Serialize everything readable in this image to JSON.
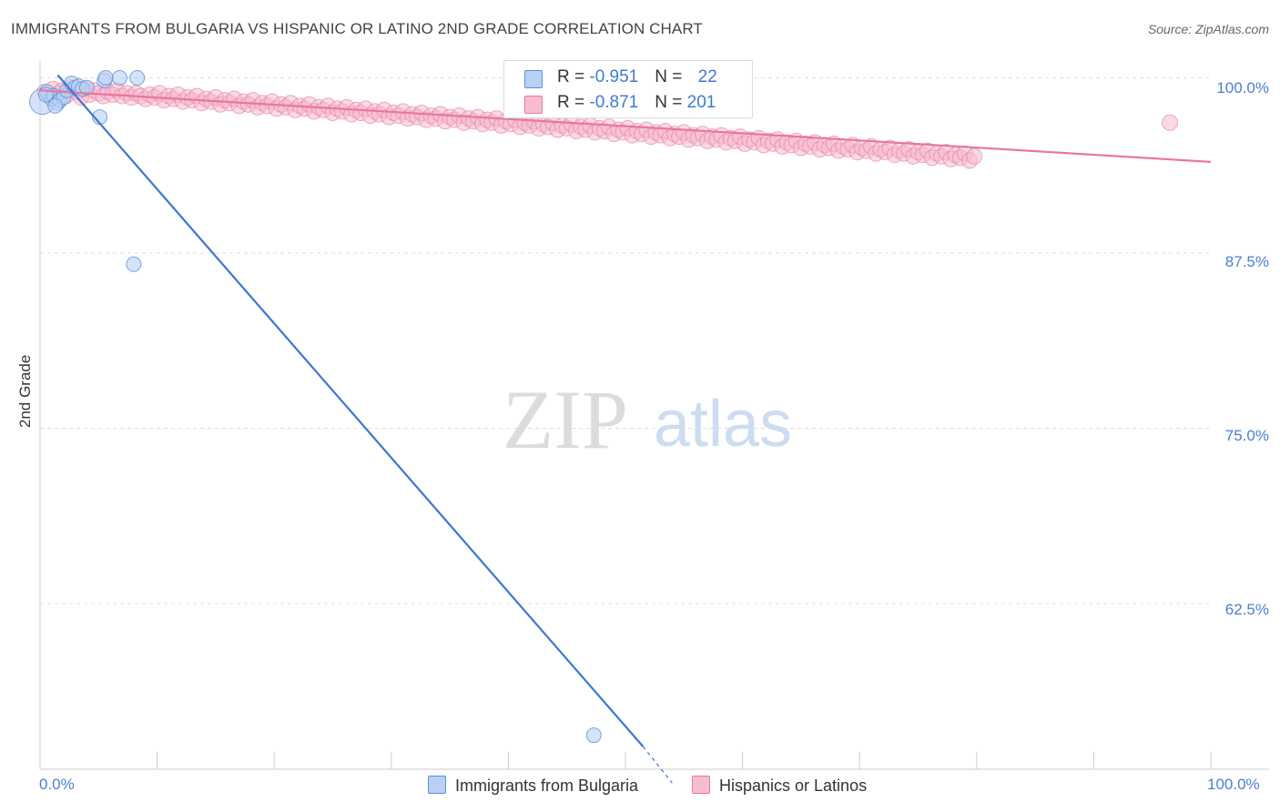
{
  "title": "IMMIGRANTS FROM BULGARIA VS HISPANIC OR LATINO 2ND GRADE CORRELATION CHART",
  "source": "Source: ZipAtlas.com",
  "watermark": {
    "zip": "ZIP",
    "atlas": "atlas"
  },
  "legend": {
    "rows": [
      {
        "r_label": "R = ",
        "r_value": "-0.951",
        "n_label": "N = ",
        "n_value": "22"
      },
      {
        "r_label": "R = ",
        "r_value": "-0.871",
        "n_label": "N = ",
        "n_value": "201"
      }
    ]
  },
  "bottom_legend": [
    "Immigrants from Bulgaria",
    "Hispanics or Latinos"
  ],
  "colors": {
    "blue": "#5b8fdc",
    "blue_fill": "#b9d0f3",
    "pink": "#e8779c",
    "pink_fill": "#f6bdd0",
    "tick": "#4a7fd0"
  },
  "chart_data": {
    "type": "scatter",
    "title": "IMMIGRANTS FROM BULGARIA VS HISPANIC OR LATINO 2ND GRADE CORRELATION CHART",
    "xlabel": "",
    "ylabel": "2nd Grade",
    "x_tick_labels": [
      "0.0%",
      "100.0%"
    ],
    "y_tick_labels": [
      "100.0%",
      "87.5%",
      "75.0%",
      "62.5%"
    ],
    "xlim": [
      0,
      100
    ],
    "ylim": [
      52.3,
      101.2
    ],
    "grid": true,
    "series": [
      {
        "name": "Immigrants from Bulgaria",
        "color": "#5b8fdc",
        "points": [
          [
            0.2,
            98.3
          ],
          [
            0.6,
            99.0
          ],
          [
            1.0,
            98.5
          ],
          [
            1.2,
            98.7
          ],
          [
            1.5,
            98.2
          ],
          [
            1.7,
            98.4
          ],
          [
            2.0,
            98.6
          ],
          [
            2.3,
            99.1
          ],
          [
            2.7,
            99.6
          ],
          [
            3.0,
            99.3
          ],
          [
            3.3,
            99.4
          ],
          [
            3.6,
            99.2
          ],
          [
            4.0,
            99.3
          ],
          [
            5.1,
            97.2
          ],
          [
            5.5,
            99.8
          ],
          [
            5.6,
            100.0
          ],
          [
            6.8,
            100.0
          ],
          [
            8.3,
            100.0
          ],
          [
            8.0,
            86.7
          ],
          [
            47.3,
            53.1
          ],
          [
            0.5,
            98.8
          ],
          [
            1.3,
            98.0
          ]
        ],
        "trend": [
          [
            1.5,
            100.2
          ],
          [
            51.5,
            52.3
          ]
        ]
      },
      {
        "name": "Hispanics or Latinos",
        "color": "#e8779c",
        "points": [
          [
            0.4,
            99.0
          ],
          [
            0.8,
            98.8
          ],
          [
            1.1,
            99.2
          ],
          [
            1.6,
            98.9
          ],
          [
            1.9,
            99.1
          ],
          [
            2.2,
            98.7
          ],
          [
            2.6,
            99.3
          ],
          [
            3.1,
            99.0
          ],
          [
            3.5,
            98.6
          ],
          [
            3.8,
            99.2
          ],
          [
            4.2,
            98.8
          ],
          [
            4.6,
            99.1
          ],
          [
            5.0,
            98.9
          ],
          [
            5.4,
            98.7
          ],
          [
            5.8,
            99.0
          ],
          [
            6.2,
            98.8
          ],
          [
            6.6,
            99.1
          ],
          [
            7.0,
            98.7
          ],
          [
            7.4,
            98.9
          ],
          [
            7.8,
            98.6
          ],
          [
            8.2,
            98.9
          ],
          [
            8.6,
            98.7
          ],
          [
            9.0,
            98.5
          ],
          [
            9.4,
            98.8
          ],
          [
            9.8,
            98.6
          ],
          [
            10.2,
            98.9
          ],
          [
            10.6,
            98.4
          ],
          [
            11.0,
            98.7
          ],
          [
            11.4,
            98.5
          ],
          [
            11.8,
            98.8
          ],
          [
            12.2,
            98.3
          ],
          [
            12.6,
            98.6
          ],
          [
            13.0,
            98.4
          ],
          [
            13.4,
            98.7
          ],
          [
            13.8,
            98.2
          ],
          [
            14.2,
            98.5
          ],
          [
            14.6,
            98.3
          ],
          [
            15.0,
            98.6
          ],
          [
            15.4,
            98.1
          ],
          [
            15.8,
            98.4
          ],
          [
            16.2,
            98.2
          ],
          [
            16.6,
            98.5
          ],
          [
            17.0,
            98.0
          ],
          [
            17.4,
            98.3
          ],
          [
            17.8,
            98.1
          ],
          [
            18.2,
            98.4
          ],
          [
            18.6,
            97.9
          ],
          [
            19.0,
            98.2
          ],
          [
            19.4,
            98.0
          ],
          [
            19.8,
            98.3
          ],
          [
            20.2,
            97.8
          ],
          [
            20.6,
            98.1
          ],
          [
            21.0,
            97.9
          ],
          [
            21.4,
            98.2
          ],
          [
            21.8,
            97.7
          ],
          [
            22.2,
            98.0
          ],
          [
            22.6,
            97.8
          ],
          [
            23.0,
            98.1
          ],
          [
            23.4,
            97.6
          ],
          [
            23.8,
            97.9
          ],
          [
            24.2,
            97.7
          ],
          [
            24.6,
            98.0
          ],
          [
            25.0,
            97.5
          ],
          [
            25.4,
            97.8
          ],
          [
            25.8,
            97.6
          ],
          [
            26.2,
            97.9
          ],
          [
            26.6,
            97.4
          ],
          [
            27.0,
            97.7
          ],
          [
            27.4,
            97.5
          ],
          [
            27.8,
            97.8
          ],
          [
            28.2,
            97.3
          ],
          [
            28.6,
            97.6
          ],
          [
            29.0,
            97.4
          ],
          [
            29.4,
            97.7
          ],
          [
            29.8,
            97.2
          ],
          [
            30.2,
            97.5
          ],
          [
            30.6,
            97.3
          ],
          [
            31.0,
            97.6
          ],
          [
            31.4,
            97.1
          ],
          [
            31.8,
            97.4
          ],
          [
            32.2,
            97.2
          ],
          [
            32.6,
            97.5
          ],
          [
            33.0,
            97.0
          ],
          [
            33.4,
            97.3
          ],
          [
            33.8,
            97.1
          ],
          [
            34.2,
            97.4
          ],
          [
            34.6,
            96.9
          ],
          [
            35.0,
            97.2
          ],
          [
            35.4,
            97.0
          ],
          [
            35.8,
            97.3
          ],
          [
            36.2,
            96.8
          ],
          [
            36.6,
            97.1
          ],
          [
            37.0,
            96.9
          ],
          [
            37.4,
            97.2
          ],
          [
            37.8,
            96.7
          ],
          [
            38.2,
            97.0
          ],
          [
            38.6,
            96.8
          ],
          [
            39.0,
            97.1
          ],
          [
            39.4,
            96.6
          ],
          [
            39.8,
            96.9
          ],
          [
            40.2,
            96.7
          ],
          [
            40.6,
            97.0
          ],
          [
            41.0,
            96.5
          ],
          [
            41.4,
            96.8
          ],
          [
            41.8,
            96.6
          ],
          [
            42.2,
            96.9
          ],
          [
            42.6,
            96.4
          ],
          [
            43.0,
            96.7
          ],
          [
            43.4,
            96.5
          ],
          [
            43.8,
            96.8
          ],
          [
            44.2,
            96.3
          ],
          [
            44.6,
            96.6
          ],
          [
            45.0,
            96.4
          ],
          [
            45.4,
            96.7
          ],
          [
            45.8,
            96.2
          ],
          [
            46.2,
            96.5
          ],
          [
            46.6,
            96.3
          ],
          [
            47.0,
            96.6
          ],
          [
            47.4,
            96.1
          ],
          [
            47.8,
            96.4
          ],
          [
            48.2,
            96.2
          ],
          [
            48.6,
            96.5
          ],
          [
            49.0,
            96.0
          ],
          [
            49.4,
            96.3
          ],
          [
            49.8,
            96.1
          ],
          [
            50.2,
            96.4
          ],
          [
            50.6,
            95.9
          ],
          [
            51.0,
            96.2
          ],
          [
            51.4,
            96.0
          ],
          [
            51.8,
            96.3
          ],
          [
            52.2,
            95.8
          ],
          [
            52.6,
            96.1
          ],
          [
            53.0,
            95.9
          ],
          [
            53.4,
            96.2
          ],
          [
            53.8,
            95.7
          ],
          [
            54.2,
            96.0
          ],
          [
            54.6,
            95.8
          ],
          [
            55.0,
            96.1
          ],
          [
            55.4,
            95.6
          ],
          [
            55.8,
            95.9
          ],
          [
            56.2,
            95.7
          ],
          [
            56.6,
            96.0
          ],
          [
            57.0,
            95.5
          ],
          [
            57.4,
            95.8
          ],
          [
            57.8,
            95.6
          ],
          [
            58.2,
            95.9
          ],
          [
            58.6,
            95.4
          ],
          [
            59.0,
            95.7
          ],
          [
            59.4,
            95.5
          ],
          [
            59.8,
            95.8
          ],
          [
            60.2,
            95.3
          ],
          [
            60.6,
            95.6
          ],
          [
            61.0,
            95.4
          ],
          [
            61.4,
            95.7
          ],
          [
            61.8,
            95.2
          ],
          [
            62.2,
            95.5
          ],
          [
            62.6,
            95.3
          ],
          [
            63.0,
            95.6
          ],
          [
            63.4,
            95.1
          ],
          [
            63.8,
            95.4
          ],
          [
            64.2,
            95.2
          ],
          [
            64.6,
            95.5
          ],
          [
            65.0,
            95.0
          ],
          [
            65.4,
            95.3
          ],
          [
            65.8,
            95.1
          ],
          [
            66.2,
            95.4
          ],
          [
            66.6,
            94.9
          ],
          [
            67.0,
            95.2
          ],
          [
            67.4,
            95.0
          ],
          [
            67.8,
            95.3
          ],
          [
            68.2,
            94.8
          ],
          [
            68.6,
            95.1
          ],
          [
            69.0,
            94.9
          ],
          [
            69.4,
            95.2
          ],
          [
            69.8,
            94.7
          ],
          [
            70.2,
            95.0
          ],
          [
            70.6,
            94.8
          ],
          [
            71.0,
            95.1
          ],
          [
            71.4,
            94.6
          ],
          [
            71.8,
            94.9
          ],
          [
            72.2,
            94.7
          ],
          [
            72.6,
            95.0
          ],
          [
            73.0,
            94.5
          ],
          [
            73.4,
            94.8
          ],
          [
            73.8,
            94.6
          ],
          [
            74.2,
            94.9
          ],
          [
            74.6,
            94.4
          ],
          [
            75.0,
            94.7
          ],
          [
            75.4,
            94.5
          ],
          [
            75.8,
            94.8
          ],
          [
            76.2,
            94.3
          ],
          [
            76.6,
            94.6
          ],
          [
            77.0,
            94.4
          ],
          [
            77.4,
            94.7
          ],
          [
            77.8,
            94.2
          ],
          [
            78.2,
            94.5
          ],
          [
            78.6,
            94.3
          ],
          [
            79.0,
            94.6
          ],
          [
            79.4,
            94.1
          ],
          [
            79.8,
            94.4
          ],
          [
            96.5,
            96.8
          ]
        ],
        "trend": [
          [
            0.0,
            99.1
          ],
          [
            100.0,
            94.0
          ]
        ]
      }
    ]
  }
}
